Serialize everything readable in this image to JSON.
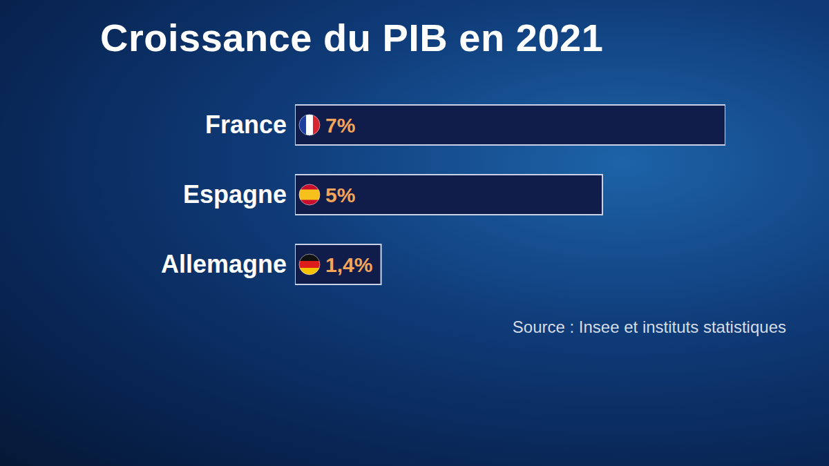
{
  "chart_data": {
    "type": "bar",
    "orientation": "horizontal",
    "title": "Croissance du PIB en 2021",
    "categories": [
      "France",
      "Espagne",
      "Allemagne"
    ],
    "values": [
      7,
      5,
      1.4
    ],
    "value_labels": [
      "7%",
      "5%",
      "1,4%"
    ],
    "data_labels": true,
    "color": "#101c4a",
    "xlim": [
      0,
      7
    ],
    "tick_labels": "y",
    "grid": false,
    "source": "Source : Insee et instituts statistiques"
  }
}
